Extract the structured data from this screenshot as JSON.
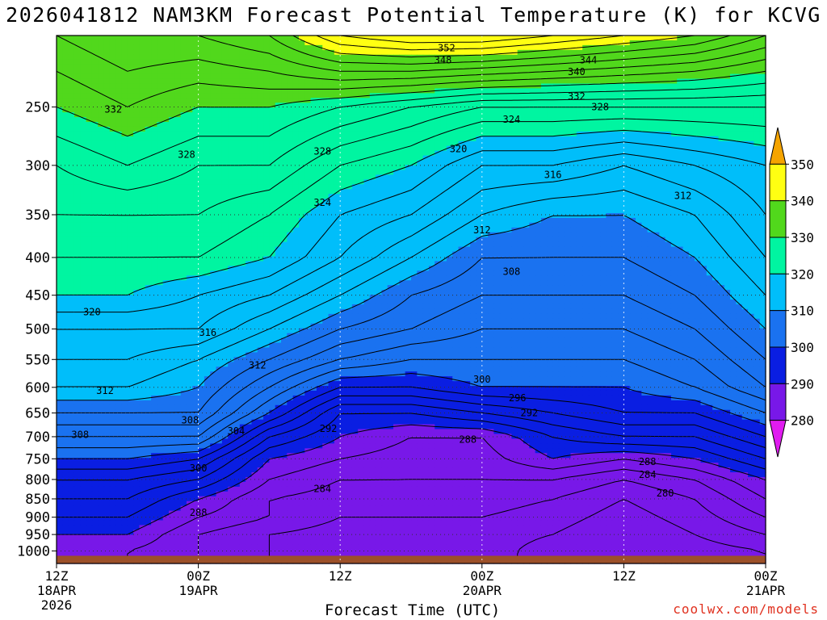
{
  "title": "2026041812 NAM3KM Forecast Potential Temperature (K) for KCVG",
  "xlabel": "Forecast Time (UTC)",
  "credit": "coolwx.com/models",
  "colors": {
    "ground": "#9c5029",
    "contour": "#000000",
    "grid": "#333333"
  },
  "chart_data": {
    "type": "heatmap",
    "title": "2026041812 NAM3KM Forecast Potential Temperature (K) for KCVG",
    "xlabel": "Forecast Time (UTC)",
    "ylabel": "",
    "variable": "Potential Temperature (K)",
    "x_range_hours": [
      0,
      60
    ],
    "y_range": [
      1000,
      200
    ],
    "y_scale": "log",
    "grid": true,
    "x_ticks": [
      {
        "hour": 0,
        "label": "12Z",
        "sub1": "18APR",
        "sub2": "2026"
      },
      {
        "hour": 12,
        "label": "00Z",
        "sub1": "19APR",
        "sub2": ""
      },
      {
        "hour": 24,
        "label": "12Z",
        "sub1": "",
        "sub2": ""
      },
      {
        "hour": 36,
        "label": "00Z",
        "sub1": "20APR",
        "sub2": ""
      },
      {
        "hour": 48,
        "label": "12Z",
        "sub1": "",
        "sub2": ""
      },
      {
        "hour": 60,
        "label": "00Z",
        "sub1": "21APR",
        "sub2": ""
      }
    ],
    "y_ticks": [
      250,
      300,
      350,
      400,
      450,
      500,
      550,
      600,
      650,
      700,
      750,
      800,
      850,
      900,
      950,
      1000
    ],
    "colorbar": {
      "placement": "right",
      "labels": [
        "350",
        "340",
        "330",
        "320",
        "310",
        "300",
        "290",
        "280"
      ],
      "bands": [
        {
          "min": 350,
          "max": 360,
          "color": "#f5a400"
        },
        {
          "min": 340,
          "max": 350,
          "color": "#ffff12"
        },
        {
          "min": 330,
          "max": 340,
          "color": "#51d81c"
        },
        {
          "min": 320,
          "max": 330,
          "color": "#00f5a1"
        },
        {
          "min": 310,
          "max": 320,
          "color": "#00befa"
        },
        {
          "min": 300,
          "max": 310,
          "color": "#1a72f0"
        },
        {
          "min": 290,
          "max": 300,
          "color": "#0a1ee2"
        },
        {
          "min": 280,
          "max": 290,
          "color": "#7818e8"
        },
        {
          "min": 270,
          "max": 280,
          "color": "#e01cf0"
        }
      ]
    },
    "contour_interval_K": 2,
    "profiles": [
      {
        "hour": 0,
        "theta_at_pressure": {
          "1000": 288,
          "950": 290,
          "900": 292,
          "850": 294,
          "800": 296,
          "750": 300,
          "700": 304,
          "650": 308,
          "600": 312,
          "550": 314,
          "500": 316,
          "450": 320,
          "400": 322,
          "350": 324,
          "300": 326,
          "250": 330,
          "200": 334
        }
      },
      {
        "hour": 6,
        "theta_at_pressure": {
          "1000": 288,
          "950": 290,
          "900": 292,
          "850": 294,
          "800": 296,
          "750": 300,
          "700": 304,
          "650": 308,
          "600": 312,
          "550": 314,
          "500": 316,
          "450": 320,
          "400": 322,
          "350": 324,
          "300": 328,
          "250": 332,
          "200": 336
        }
      },
      {
        "hour": 12,
        "theta_at_pressure": {
          "1000": 286,
          "950": 286,
          "900": 288,
          "850": 290,
          "800": 294,
          "750": 298,
          "700": 304,
          "650": 308,
          "600": 310,
          "550": 312,
          "500": 316,
          "450": 318,
          "400": 322,
          "350": 324,
          "300": 326,
          "250": 330,
          "200": 336
        }
      },
      {
        "hour": 18,
        "theta_at_pressure": {
          "1000": 284,
          "950": 284,
          "900": 286,
          "850": 286,
          "800": 288,
          "750": 290,
          "700": 294,
          "650": 300,
          "600": 304,
          "550": 308,
          "500": 312,
          "450": 316,
          "400": 320,
          "350": 322,
          "300": 326,
          "250": 330,
          "200": 338
        }
      },
      {
        "hour": 24,
        "theta_at_pressure": {
          "1000": 283,
          "950": 283,
          "900": 284,
          "850": 285,
          "800": 286,
          "750": 288,
          "700": 290,
          "650": 292,
          "600": 298,
          "550": 304,
          "500": 308,
          "450": 312,
          "400": 316,
          "350": 318,
          "300": 322,
          "250": 328,
          "200": 344
        }
      },
      {
        "hour": 30,
        "theta_at_pressure": {
          "1000": 283,
          "950": 283,
          "900": 284,
          "850": 285,
          "800": 286,
          "750": 287,
          "700": 288,
          "650": 292,
          "600": 298,
          "550": 302,
          "500": 306,
          "450": 308,
          "400": 312,
          "350": 316,
          "300": 320,
          "250": 326,
          "200": 346
        }
      },
      {
        "hour": 36,
        "theta_at_pressure": {
          "1000": 283,
          "950": 283,
          "900": 284,
          "850": 285,
          "800": 286,
          "750": 287,
          "700": 288,
          "650": 294,
          "600": 300,
          "550": 302,
          "500": 304,
          "450": 306,
          "400": 308,
          "350": 312,
          "300": 316,
          "250": 324,
          "200": 346
        }
      },
      {
        "hour": 42,
        "theta_at_pressure": {
          "1000": 281,
          "950": 282,
          "900": 283,
          "850": 284,
          "800": 286,
          "750": 290,
          "700": 292,
          "650": 296,
          "600": 300,
          "550": 302,
          "500": 304,
          "450": 306,
          "400": 308,
          "350": 310,
          "300": 316,
          "250": 324,
          "200": 344
        }
      },
      {
        "hour": 48,
        "theta_at_pressure": {
          "1000": 280,
          "950": 280,
          "900": 281,
          "850": 282,
          "800": 284,
          "750": 288,
          "700": 294,
          "650": 298,
          "600": 300,
          "550": 302,
          "500": 304,
          "450": 306,
          "400": 308,
          "350": 310,
          "300": 314,
          "250": 324,
          "200": 342
        }
      },
      {
        "hour": 54,
        "theta_at_pressure": {
          "1000": 281,
          "950": 282,
          "900": 283,
          "850": 284,
          "800": 286,
          "750": 290,
          "700": 294,
          "650": 298,
          "600": 302,
          "550": 304,
          "500": 306,
          "450": 308,
          "400": 310,
          "350": 312,
          "300": 316,
          "250": 324,
          "200": 340
        }
      },
      {
        "hour": 60,
        "theta_at_pressure": {
          "1000": 282,
          "950": 284,
          "900": 286,
          "850": 288,
          "800": 290,
          "750": 294,
          "700": 298,
          "650": 302,
          "600": 306,
          "550": 308,
          "500": 310,
          "450": 312,
          "400": 314,
          "350": 316,
          "300": 318,
          "250": 324,
          "200": 336
        }
      }
    ],
    "contour_labels": [
      {
        "value": "352",
        "hour": 33.0,
        "pressure": 208
      },
      {
        "value": "348",
        "hour": 32.7,
        "pressure": 216
      },
      {
        "value": "344",
        "hour": 45.0,
        "pressure": 216
      },
      {
        "value": "340",
        "hour": 44.0,
        "pressure": 224
      },
      {
        "value": "332",
        "hour": 4.8,
        "pressure": 252
      },
      {
        "value": "332",
        "hour": 44.0,
        "pressure": 242
      },
      {
        "value": "328",
        "hour": 46.0,
        "pressure": 250
      },
      {
        "value": "324",
        "hour": 38.5,
        "pressure": 260
      },
      {
        "value": "328",
        "hour": 11.0,
        "pressure": 290
      },
      {
        "value": "328",
        "hour": 22.5,
        "pressure": 287
      },
      {
        "value": "320",
        "hour": 34.0,
        "pressure": 285
      },
      {
        "value": "316",
        "hour": 42.0,
        "pressure": 309
      },
      {
        "value": "312",
        "hour": 53.0,
        "pressure": 330
      },
      {
        "value": "324",
        "hour": 22.5,
        "pressure": 337
      },
      {
        "value": "312",
        "hour": 36.0,
        "pressure": 367
      },
      {
        "value": "308",
        "hour": 38.5,
        "pressure": 418
      },
      {
        "value": "320",
        "hour": 3.0,
        "pressure": 474
      },
      {
        "value": "316",
        "hour": 12.8,
        "pressure": 506
      },
      {
        "value": "312",
        "hour": 17.0,
        "pressure": 560
      },
      {
        "value": "312",
        "hour": 4.1,
        "pressure": 606
      },
      {
        "value": "300",
        "hour": 36.0,
        "pressure": 585
      },
      {
        "value": "296",
        "hour": 39.0,
        "pressure": 620
      },
      {
        "value": "292",
        "hour": 40.0,
        "pressure": 650
      },
      {
        "value": "308",
        "hour": 11.3,
        "pressure": 665
      },
      {
        "value": "304",
        "hour": 15.2,
        "pressure": 688
      },
      {
        "value": "292",
        "hour": 23.0,
        "pressure": 683
      },
      {
        "value": "308",
        "hour": 2.0,
        "pressure": 696
      },
      {
        "value": "288",
        "hour": 34.8,
        "pressure": 706
      },
      {
        "value": "288",
        "hour": 50.0,
        "pressure": 757
      },
      {
        "value": "284",
        "hour": 50.0,
        "pressure": 788
      },
      {
        "value": "300",
        "hour": 12.0,
        "pressure": 772
      },
      {
        "value": "284",
        "hour": 22.5,
        "pressure": 824
      },
      {
        "value": "280",
        "hour": 51.5,
        "pressure": 835
      },
      {
        "value": "288",
        "hour": 12.0,
        "pressure": 887
      }
    ]
  }
}
